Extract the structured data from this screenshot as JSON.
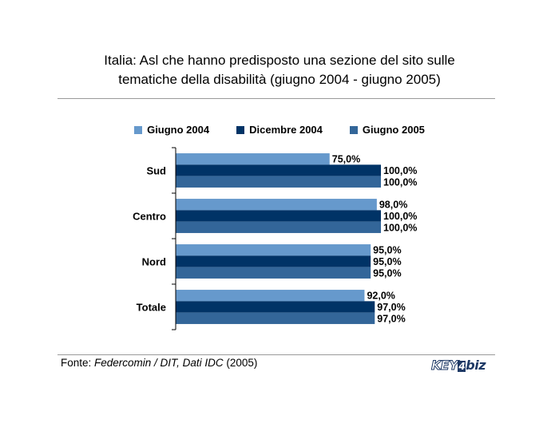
{
  "title_line1": "Italia: Asl che hanno predisposto una sezione del sito sulle",
  "title_line2": "tematiche della disabilità (giugno 2004 - giugno 2005)",
  "source": {
    "prefix": "Fonte: ",
    "italic": "Federcomin / DIT, Dati IDC",
    "suffix": " (2005)"
  },
  "logo": {
    "key": "KEY",
    "four": "4",
    "biz": "biz"
  },
  "colors": {
    "giugno_2004": "#6699cc",
    "dicembre_2004": "#003366",
    "giugno_2005": "#336699"
  },
  "chart_data": {
    "type": "bar",
    "orientation": "horizontal",
    "categories": [
      "Sud",
      "Centro",
      "Nord",
      "Totale"
    ],
    "series": [
      {
        "name": "Giugno 2004",
        "color": "#6699cc",
        "values": [
          75.0,
          98.0,
          95.0,
          92.0
        ],
        "labels": [
          "75,0%",
          "98,0%",
          "95,0%",
          "92,0%"
        ]
      },
      {
        "name": "Dicembre 2004",
        "color": "#003366",
        "values": [
          100.0,
          100.0,
          95.0,
          97.0
        ],
        "labels": [
          "100,0%",
          "100,0%",
          "95,0%",
          "97,0%"
        ]
      },
      {
        "name": "Giugno 2005",
        "color": "#336699",
        "values": [
          100.0,
          100.0,
          95.0,
          97.0
        ],
        "labels": [
          "100,0%",
          "100,0%",
          "95,0%",
          "97,0%"
        ]
      }
    ],
    "xlim": [
      0,
      100
    ],
    "grid": false,
    "legend": "top"
  }
}
